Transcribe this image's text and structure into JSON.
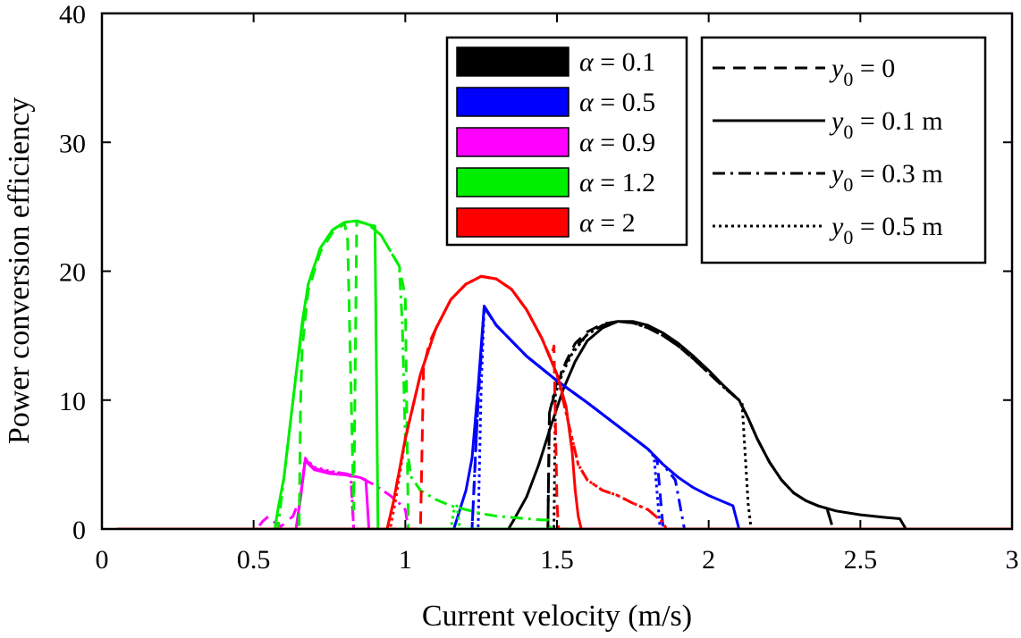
{
  "chart_data": {
    "type": "line",
    "title": "",
    "xlabel": "Current velocity (m/s)",
    "ylabel": "Power conversion efficiency",
    "xlim": [
      0,
      3
    ],
    "ylim": [
      0,
      40
    ],
    "xticks": [
      0,
      0.5,
      1,
      1.5,
      2,
      2.5,
      3
    ],
    "xtick_labels": [
      "0",
      "0.5",
      "1",
      "1.5",
      "2",
      "2.5",
      "3"
    ],
    "yticks": [
      0,
      10,
      20,
      30,
      40
    ],
    "ytick_labels": [
      "0",
      "10",
      "20",
      "30",
      "40"
    ],
    "grid": false,
    "legend_alpha": {
      "placement": "top-right",
      "entries": [
        {
          "label": "α = 0.1",
          "color": "#000000"
        },
        {
          "label": "α = 0.5",
          "color": "#0000ff"
        },
        {
          "label": "α = 0.9",
          "color": "#ff00ff"
        },
        {
          "label": "α = 1.2",
          "color": "#00ee00"
        },
        {
          "label": "α = 2",
          "color": "#ff0000"
        }
      ]
    },
    "legend_y0": {
      "placement": "top-right",
      "entries": [
        {
          "label": "y0 = 0",
          "var": "y",
          "sub": "0",
          "rest": " = 0",
          "style": "dashed"
        },
        {
          "label": "y0 = 0.1 m",
          "var": "y",
          "sub": "0",
          "rest": " = 0.1 m",
          "style": "solid"
        },
        {
          "label": "y0 = 0.3 m",
          "var": "y",
          "sub": "0",
          "rest": " = 0.3 m",
          "style": "dashdot"
        },
        {
          "label": "y0 = 0.5 m",
          "var": "y",
          "sub": "0",
          "rest": " = 0.5 m",
          "style": "dotted"
        }
      ]
    },
    "series": [
      {
        "name": "α = 0.1, y0 = 0.1 m",
        "alpha": "0.1",
        "style": "solid",
        "color": "#000000",
        "x": [
          0.05,
          1.34,
          1.36,
          1.4,
          1.44,
          1.48,
          1.52,
          1.56,
          1.6,
          1.65,
          1.7,
          1.75,
          1.8,
          1.85,
          1.9,
          1.95,
          2.0,
          2.05,
          2.1,
          2.13,
          2.16,
          2.2,
          2.24,
          2.28,
          2.32,
          2.36,
          2.42,
          2.5,
          2.58,
          2.63,
          2.65,
          3.0
        ],
        "y": [
          0,
          0,
          0.8,
          2.5,
          5,
          8,
          10.8,
          13,
          14.6,
          15.6,
          16.1,
          16.1,
          15.8,
          15.2,
          14.4,
          13.4,
          12.3,
          11.1,
          10.0,
          8.6,
          7.0,
          5.2,
          3.8,
          2.8,
          2.2,
          1.8,
          1.4,
          1.1,
          0.9,
          0.8,
          0,
          0
        ]
      },
      {
        "name": "α = 0.1, y0 = 0",
        "alpha": "0.1",
        "style": "dashed",
        "color": "#000000",
        "x": [
          0.05,
          1.47,
          1.475,
          1.5,
          1.53,
          1.56,
          1.6,
          1.65,
          1.7,
          1.75,
          1.8,
          1.85,
          1.9,
          1.95,
          2.0,
          2.05,
          2.1,
          2.13,
          2.16,
          2.2,
          2.24,
          2.28,
          2.32,
          2.36,
          2.39,
          2.41,
          3.0
        ],
        "y": [
          0,
          0,
          9,
          11.2,
          13,
          14.4,
          15.3,
          15.9,
          16.1,
          16.0,
          15.6,
          15.0,
          14.2,
          13.2,
          12.1,
          11.0,
          10.0,
          8.6,
          7.0,
          5.2,
          3.8,
          2.8,
          2.2,
          1.8,
          1.6,
          0,
          0
        ]
      },
      {
        "name": "α = 0.1, y0 = 0.3 m",
        "alpha": "0.1",
        "style": "dashdot",
        "color": "#000000",
        "x": [
          0.05,
          1.47,
          1.475,
          1.5,
          1.55,
          1.6,
          1.65,
          1.7,
          1.75,
          1.8,
          1.85,
          1.9,
          1.95,
          2.0,
          2.05,
          2.1,
          2.13,
          2.16,
          2.2,
          2.24,
          2.28,
          2.32,
          2.36,
          2.39,
          2.41,
          3.0
        ],
        "y": [
          0,
          0,
          9,
          11.5,
          13.8,
          15.1,
          15.8,
          16.1,
          16.0,
          15.6,
          15.0,
          14.2,
          13.2,
          12.1,
          11.0,
          10.0,
          8.6,
          7.0,
          5.2,
          3.8,
          2.8,
          2.2,
          1.8,
          1.6,
          0,
          0
        ]
      },
      {
        "name": "α = 0.1, y0 = 0.5 m",
        "alpha": "0.1",
        "style": "dotted",
        "color": "#000000",
        "x": [
          0.05,
          1.49,
          1.495,
          1.52,
          1.55,
          1.6,
          1.65,
          1.7,
          1.75,
          1.8,
          1.85,
          1.9,
          1.95,
          2.0,
          2.05,
          2.1,
          2.11,
          2.13,
          2.14,
          3.0
        ],
        "y": [
          0,
          0,
          10.5,
          12.2,
          13.6,
          15.1,
          15.8,
          16.1,
          16.0,
          15.6,
          15.0,
          14.2,
          13.2,
          12.1,
          11.0,
          10.0,
          9.8,
          2,
          0,
          0
        ]
      },
      {
        "name": "α = 0.5, y0 = 0.1 m",
        "alpha": "0.5",
        "style": "solid",
        "color": "#0000ff",
        "x": [
          0.05,
          1.16,
          1.18,
          1.2,
          1.22,
          1.24,
          1.26,
          1.3,
          1.4,
          1.5,
          1.6,
          1.7,
          1.8,
          1.85,
          1.9,
          1.95,
          2.0,
          2.05,
          2.08,
          2.1,
          3.0
        ],
        "y": [
          0,
          0,
          1.5,
          3,
          5.5,
          11,
          17.3,
          15.8,
          13.4,
          11.5,
          9.8,
          8.0,
          6.2,
          5.0,
          4.0,
          3.2,
          2.6,
          2.1,
          1.8,
          0,
          0
        ]
      },
      {
        "name": "α = 0.5, y0 = 0",
        "alpha": "0.5",
        "style": "dashed",
        "color": "#0000ff",
        "x": [
          0.05,
          1.22,
          1.24,
          1.26,
          1.3,
          1.4,
          1.5,
          1.6,
          1.7,
          1.8,
          1.83,
          1.85,
          3.0
        ],
        "y": [
          0,
          0,
          10,
          17.2,
          15.8,
          13.4,
          11.5,
          9.8,
          8.0,
          6.2,
          5.4,
          0,
          0
        ]
      },
      {
        "name": "α = 0.5, y0 = 0.3 m",
        "alpha": "0.5",
        "style": "dashdot",
        "color": "#0000ff",
        "x": [
          0.05,
          1.22,
          1.24,
          1.26,
          1.3,
          1.4,
          1.5,
          1.6,
          1.7,
          1.8,
          1.85,
          1.89,
          1.92,
          3.0
        ],
        "y": [
          0,
          0,
          10,
          17.2,
          15.8,
          13.4,
          11.5,
          9.8,
          8.0,
          6.2,
          5.0,
          3.8,
          0,
          0
        ]
      },
      {
        "name": "α = 0.5, y0 = 0.5 m",
        "alpha": "0.5",
        "style": "dotted",
        "color": "#0000ff",
        "x": [
          0.05,
          1.24,
          1.25,
          1.26,
          1.3,
          1.4,
          1.5,
          1.6,
          1.7,
          1.8,
          1.82,
          1.84,
          3.0
        ],
        "y": [
          0,
          0,
          11,
          17.2,
          15.8,
          13.4,
          11.5,
          9.8,
          8.0,
          6.2,
          5.6,
          0,
          0
        ]
      },
      {
        "name": "α = 0.9, y0 = 0.1 m",
        "alpha": "0.9",
        "style": "solid",
        "color": "#ff00ff",
        "x": [
          0.05,
          0.64,
          0.655,
          0.67,
          0.7,
          0.75,
          0.8,
          0.85,
          0.87,
          0.88,
          3.0
        ],
        "y": [
          0,
          0,
          2.5,
          5.3,
          4.6,
          4.3,
          4.2,
          4.0,
          3.8,
          0,
          0
        ]
      },
      {
        "name": "α = 0.9, y0 = 0",
        "alpha": "0.9",
        "style": "dashed",
        "color": "#ff00ff",
        "x": [
          0.05,
          0.51,
          0.53,
          0.55,
          0.57,
          0.59,
          0.61,
          0.63,
          0.655,
          0.67,
          0.7,
          0.75,
          0.8,
          0.82,
          0.83,
          3.0
        ],
        "y": [
          0,
          0,
          0.6,
          1.0,
          0.5,
          0.2,
          0.6,
          1.0,
          2.5,
          5.4,
          4.7,
          4.4,
          4.3,
          4.2,
          0,
          0
        ]
      },
      {
        "name": "α = 0.9, y0 = 0.3 m",
        "alpha": "0.9",
        "style": "dashdot",
        "color": "#ff00ff",
        "x": [
          0.05,
          0.64,
          0.655,
          0.67,
          0.7,
          0.75,
          0.8,
          0.85,
          0.9,
          0.95,
          0.98,
          1.0,
          1.01,
          3.0
        ],
        "y": [
          0,
          0,
          2.5,
          5.4,
          4.7,
          4.4,
          4.3,
          4.0,
          3.4,
          2.6,
          2.0,
          1.5,
          0,
          0
        ]
      },
      {
        "name": "α = 0.9, y0 = 0.5 m",
        "alpha": "0.9",
        "style": "dotted",
        "color": "#ff00ff",
        "x": [
          0.05,
          0.64,
          0.655,
          0.67,
          0.7,
          0.75,
          0.8,
          0.82,
          0.83,
          3.0
        ],
        "y": [
          0,
          0,
          2.5,
          5.5,
          4.8,
          4.5,
          4.3,
          4.2,
          0,
          0
        ]
      },
      {
        "name": "α = 1.2, y0 = 0.1 m",
        "alpha": "1.2",
        "style": "solid",
        "color": "#00ee00",
        "x": [
          0.05,
          0.57,
          0.58,
          0.6,
          0.62,
          0.64,
          0.66,
          0.68,
          0.72,
          0.76,
          0.8,
          0.84,
          0.87,
          0.88,
          0.9,
          0.91,
          3.0
        ],
        "y": [
          0,
          0,
          1.5,
          4,
          8,
          12,
          16,
          19,
          21.8,
          23.2,
          23.8,
          23.9,
          23.7,
          23.6,
          23.5,
          0,
          0
        ]
      },
      {
        "name": "α = 1.2, y0 = 0",
        "alpha": "1.2",
        "style": "dashed",
        "color": "#00ee00",
        "x": [
          0.05,
          0.65,
          0.655,
          0.66,
          0.68,
          0.72,
          0.76,
          0.8,
          0.81,
          0.82,
          0.83,
          0.84,
          0.88,
          0.92,
          0.96,
          0.98,
          1.0,
          1.01,
          3.0
        ],
        "y": [
          0,
          0,
          10,
          14,
          18.5,
          21.5,
          23,
          23.7,
          22.4,
          12,
          1.5,
          23.9,
          23.6,
          22.8,
          21.2,
          20.4,
          18,
          0,
          0
        ]
      },
      {
        "name": "α = 1.2, y0 = 0.3 m",
        "alpha": "1.2",
        "style": "dashdot",
        "color": "#00ee00",
        "x": [
          0.05,
          0.58,
          0.6,
          0.64,
          0.68,
          0.72,
          0.76,
          0.8,
          0.84,
          0.88,
          0.92,
          0.96,
          0.98,
          0.99,
          1.0,
          1.02,
          1.05,
          1.1,
          1.15,
          1.2,
          1.25,
          1.3,
          1.35,
          1.4,
          1.45,
          1.47,
          1.48,
          3.0
        ],
        "y": [
          0,
          0,
          4,
          12,
          19,
          21.8,
          23.2,
          23.8,
          23.9,
          23.6,
          22.8,
          21.2,
          20.4,
          16,
          7,
          4,
          3,
          2.3,
          1.8,
          1.5,
          1.2,
          1.0,
          0.9,
          0.8,
          0.7,
          0.7,
          0,
          0
        ]
      },
      {
        "name": "α = 1.2, y0 = 0.5 m",
        "alpha": "1.2",
        "style": "dotted",
        "color": "#00ee00",
        "x": [
          0.05,
          1.15,
          1.16,
          1.17,
          1.18,
          3.0
        ],
        "y": [
          0,
          0,
          1.4,
          1.8,
          0,
          0
        ]
      },
      {
        "name": "α = 2, y0 = 0.1 m",
        "alpha": "2",
        "style": "solid",
        "color": "#ff0000",
        "x": [
          0.05,
          0.94,
          0.96,
          1.0,
          1.05,
          1.1,
          1.15,
          1.2,
          1.25,
          1.3,
          1.35,
          1.4,
          1.45,
          1.5,
          1.53,
          1.55,
          1.56,
          1.57,
          1.58,
          3.0
        ],
        "y": [
          0,
          0,
          2,
          7,
          12,
          15.5,
          17.8,
          19.0,
          19.6,
          19.4,
          18.6,
          17.0,
          14.8,
          12.0,
          9.5,
          6.0,
          3.0,
          1.0,
          0,
          0
        ]
      },
      {
        "name": "α = 2, y0 = 0",
        "alpha": "2",
        "style": "dashed",
        "color": "#ff0000",
        "x": [
          0.05,
          1.05,
          1.055,
          1.06,
          1.08,
          1.1,
          1.15,
          1.2,
          1.25,
          1.3,
          1.35,
          1.4,
          1.45,
          1.48,
          1.49,
          1.5,
          1.505,
          3.0
        ],
        "y": [
          0,
          0,
          6,
          12.5,
          14.5,
          15.5,
          17.8,
          19.0,
          19.6,
          19.4,
          18.6,
          17.0,
          14.8,
          13.2,
          14.2,
          2.0,
          0,
          0
        ]
      },
      {
        "name": "α = 2, y0 = 0.3 m",
        "alpha": "2",
        "style": "dashdot",
        "color": "#ff0000",
        "x": [
          0.05,
          0.94,
          0.96,
          1.0,
          1.05,
          1.1,
          1.15,
          1.2,
          1.25,
          1.3,
          1.35,
          1.4,
          1.45,
          1.5,
          1.54,
          1.57,
          1.6,
          1.65,
          1.7,
          1.75,
          1.8,
          1.83,
          1.85,
          1.86,
          3.0
        ],
        "y": [
          0,
          0,
          2,
          7,
          12,
          15.5,
          17.8,
          19.0,
          19.6,
          19.4,
          18.6,
          17.0,
          14.8,
          12.0,
          8.0,
          5.0,
          3.8,
          3.0,
          2.6,
          2.0,
          1.5,
          0.9,
          0.5,
          0,
          0
        ]
      },
      {
        "name": "α = 2, y0 = 0.5 m",
        "alpha": "2",
        "style": "dotted",
        "color": "#ff0000",
        "x": [
          0.05,
          0.95,
          0.97,
          1.0,
          1.05,
          1.1,
          1.15,
          1.2,
          1.25,
          1.3,
          1.35,
          1.4,
          1.45,
          1.5,
          1.54,
          1.57,
          1.6,
          1.65,
          1.7,
          1.75,
          1.8,
          1.83,
          1.85,
          1.86,
          3.0
        ],
        "y": [
          0,
          0,
          2.5,
          7,
          12,
          15.5,
          17.8,
          19.0,
          19.6,
          19.4,
          18.6,
          17.0,
          14.8,
          12.0,
          8.0,
          5.0,
          3.8,
          3.0,
          2.6,
          2.0,
          1.5,
          0.9,
          0.5,
          0,
          0
        ]
      }
    ]
  }
}
